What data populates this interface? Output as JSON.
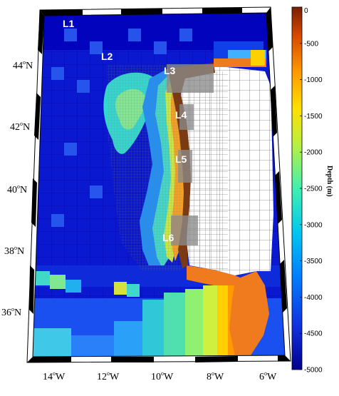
{
  "map": {
    "latitudes": [
      {
        "deg": "44",
        "sup": "o",
        "hemi": "N"
      },
      {
        "deg": "42",
        "sup": "o",
        "hemi": "N"
      },
      {
        "deg": "40",
        "sup": "o",
        "hemi": "N"
      },
      {
        "deg": "38",
        "sup": "o",
        "hemi": "N"
      },
      {
        "deg": "36",
        "sup": "o",
        "hemi": "N"
      }
    ],
    "longitudes": [
      {
        "deg": "14",
        "sup": "o",
        "hemi": "W"
      },
      {
        "deg": "12",
        "sup": "o",
        "hemi": "W"
      },
      {
        "deg": "10",
        "sup": "o",
        "hemi": "W"
      },
      {
        "deg": "8",
        "sup": "o",
        "hemi": "W"
      },
      {
        "deg": "6",
        "sup": "o",
        "hemi": "W"
      }
    ],
    "regions": [
      {
        "label": "L1"
      },
      {
        "label": "L2"
      },
      {
        "label": "L3"
      },
      {
        "label": "L4"
      },
      {
        "label": "L5"
      },
      {
        "label": "L6"
      }
    ],
    "colors": {
      "deep": "#0000b4",
      "land_orange": "#f07a1e",
      "coast_brown": "#7a3a14",
      "nest_gray": "#8a8a8a",
      "background": "#ffffff"
    }
  },
  "colorbar": {
    "title": "Depth (m)",
    "ticks": [
      "0",
      "-500",
      "-1000",
      "-1500",
      "-2000",
      "-2500",
      "-3000",
      "-3500",
      "-4000",
      "-4500",
      "-5000"
    ]
  }
}
